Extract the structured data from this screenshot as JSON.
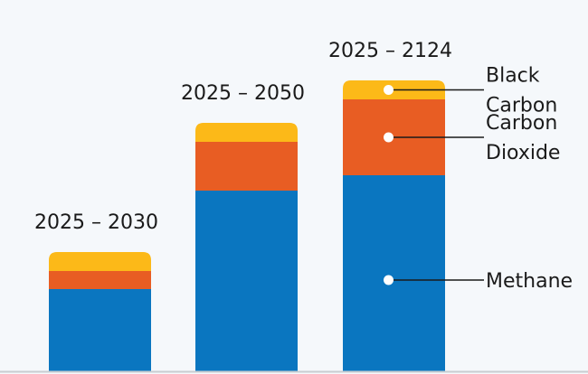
{
  "chart_data": {
    "type": "bar",
    "stacked": true,
    "title": "",
    "xlabel": "",
    "ylabel": "",
    "grid": false,
    "categories": [
      "2025 – 2030",
      "2025 – 2050",
      "2025 – 2124"
    ],
    "series": [
      {
        "name": "Methane",
        "color": "#0a76c0",
        "values": [
          91,
          200,
          217
        ]
      },
      {
        "name": "Carbon Dioxide",
        "color": "#e85d23",
        "values": [
          20,
          54,
          84
        ]
      },
      {
        "name": "Black Carbon",
        "color": "#fcb918",
        "values": [
          21,
          21,
          21
        ]
      }
    ],
    "ylim": [
      0,
      330
    ],
    "units_note": "relative units (no axis shown)",
    "annotations": [
      {
        "series": "Black Carbon",
        "lines": [
          "Black",
          "Carbon"
        ]
      },
      {
        "series": "Carbon Dioxide",
        "lines": [
          "Carbon",
          "Dioxide"
        ]
      },
      {
        "series": "Methane",
        "lines": [
          "Methane"
        ]
      }
    ],
    "legend": "annotated-right"
  }
}
